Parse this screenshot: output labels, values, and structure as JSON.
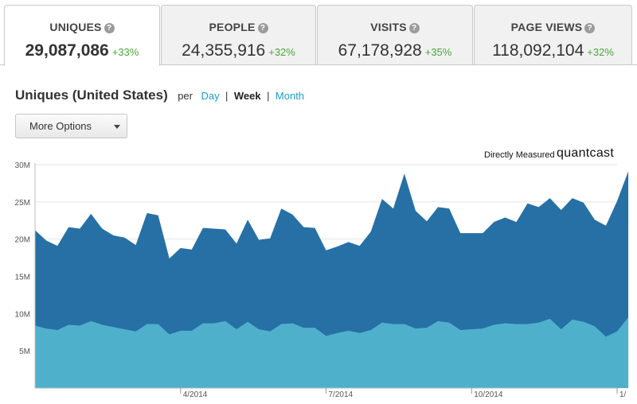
{
  "tabs": [
    {
      "title": "UNIQUES",
      "value": "29,087,086",
      "change": "+33%"
    },
    {
      "title": "PEOPLE",
      "value": "24,355,916",
      "change": "+32%"
    },
    {
      "title": "VISITS",
      "value": "67,178,928",
      "change": "+35%"
    },
    {
      "title": "PAGE VIEWS",
      "value": "118,092,104",
      "change": "+32%"
    }
  ],
  "heading": {
    "title": "Uniques (United States)",
    "per": "per",
    "day": "Day",
    "week": "Week",
    "month": "Month",
    "sep": "|"
  },
  "options": {
    "label": "More Options"
  },
  "branding": {
    "measured": "Directly Measured",
    "brand": "quantcast"
  },
  "colors": {
    "dark_series": "#2670a5",
    "light_series": "#4fb0cc",
    "link": "#1aa1c7",
    "positive": "#4aa53a"
  },
  "chart_data": {
    "type": "area",
    "title": "",
    "xlabel": "",
    "ylabel": "",
    "ylim": [
      0,
      30000000
    ],
    "yticks": [
      {
        "label": "30M",
        "value": 30000000
      },
      {
        "label": "25M",
        "value": 25000000
      },
      {
        "label": "20M",
        "value": 20000000
      },
      {
        "label": "15M",
        "value": 15000000
      },
      {
        "label": "10M",
        "value": 10000000
      },
      {
        "label": "5M",
        "value": 5000000
      }
    ],
    "xticks": [
      {
        "label": "4/2014",
        "week": 13
      },
      {
        "label": "7/2014",
        "week": 26
      },
      {
        "label": "10/2014",
        "week": 39
      },
      {
        "label": "1/",
        "week": 52
      }
    ],
    "week_count": 53,
    "stacked": false,
    "series": [
      {
        "values": [
          21.2,
          19.8,
          19.1,
          21.6,
          21.4,
          23.4,
          21.4,
          20.5,
          20.2,
          19.2,
          23.5,
          23.2,
          17.4,
          18.8,
          18.6,
          21.5,
          21.4,
          21.3,
          19.4,
          22.6,
          19.9,
          20.1,
          24.1,
          23.3,
          21.6,
          21.5,
          18.5,
          19.0,
          19.6,
          19.1,
          21.0,
          25.4,
          24.1,
          28.8,
          23.8,
          22.4,
          24.3,
          24.1,
          20.8,
          20.8,
          20.8,
          22.3,
          22.9,
          22.3,
          24.8,
          24.3,
          25.5,
          23.9,
          25.5,
          24.9,
          22.6,
          21.8,
          25.1,
          29.1
        ]
      },
      {
        "values": [
          8.4,
          8.0,
          7.8,
          8.5,
          8.4,
          9.0,
          8.5,
          8.2,
          7.9,
          7.6,
          8.6,
          8.6,
          7.2,
          7.7,
          7.7,
          8.7,
          8.7,
          9.0,
          7.9,
          8.9,
          7.9,
          7.6,
          8.6,
          8.7,
          8.1,
          8.1,
          7.0,
          7.4,
          7.7,
          7.4,
          7.8,
          8.8,
          8.6,
          8.6,
          8.0,
          8.1,
          9.0,
          8.8,
          7.8,
          7.9,
          8.0,
          8.5,
          8.7,
          8.6,
          8.6,
          8.8,
          9.3,
          7.9,
          9.2,
          8.9,
          8.3,
          6.9,
          7.6,
          9.5
        ]
      }
    ]
  }
}
